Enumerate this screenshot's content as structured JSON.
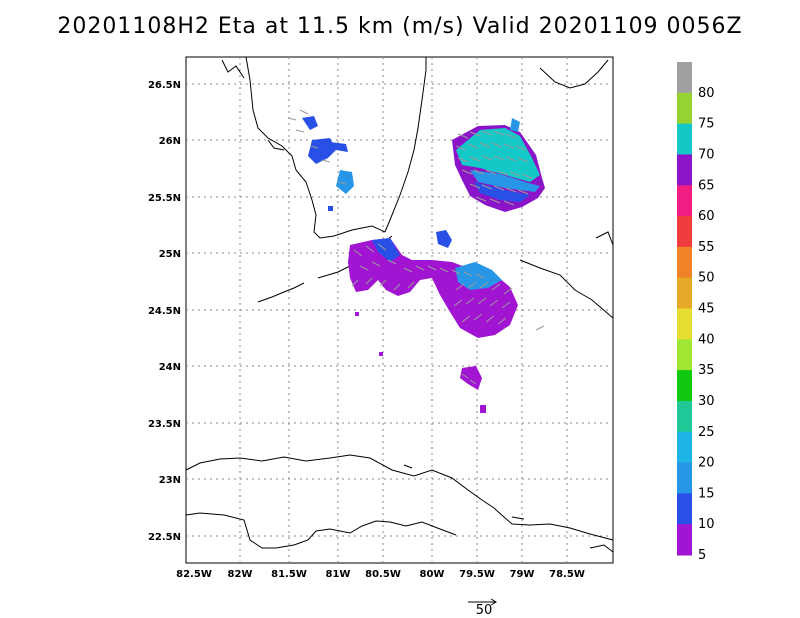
{
  "title": "20201108H2 Eta at 11.5 km (m/s) Valid 20201109 0056Z",
  "map": {
    "lat_labels": [
      "26.5N",
      "26N",
      "25.5N",
      "25N",
      "24.5N",
      "24N",
      "23.5N",
      "23N",
      "22.5N"
    ],
    "lon_labels": [
      "82.5W",
      "82W",
      "81.5W",
      "81W",
      "80.5W",
      "80W",
      "79.5W",
      "79W",
      "78.5W"
    ],
    "grid": "dotted"
  },
  "colorbar": {
    "labels": [
      "80",
      "75",
      "70",
      "65",
      "60",
      "55",
      "50",
      "45",
      "40",
      "35",
      "30",
      "25",
      "20",
      "15",
      "10",
      "5"
    ],
    "colors": [
      "#a0a0a0",
      "#96d232",
      "#14c8c8",
      "#8c14c8",
      "#f01e82",
      "#f03c3c",
      "#f08228",
      "#e6aa28",
      "#e6dc32",
      "#a0e632",
      "#10c810",
      "#20c898",
      "#1eb4e6",
      "#2896e6",
      "#2850e6",
      "#a014d2"
    ]
  },
  "vector_legend": {
    "label": "50"
  }
}
